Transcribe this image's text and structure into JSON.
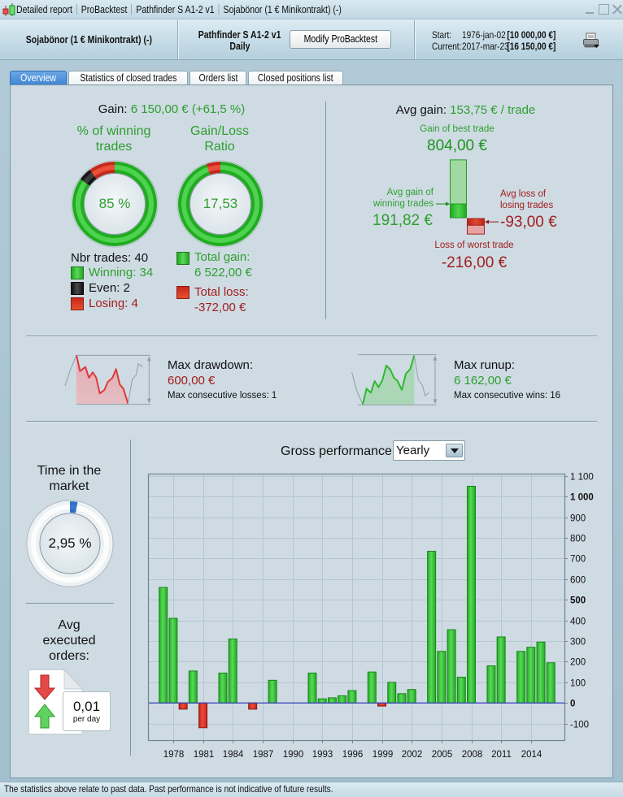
{
  "window": {
    "title_parts": [
      "Detailed report",
      "ProBacktest",
      "Pathfinder S A1-2 v1",
      "Sojabönor (1 € Minikontrakt) (-)"
    ],
    "icons": {
      "app": "candlestick-icon",
      "minimize": "minimize-icon",
      "maximize": "maximize-icon",
      "close": "close-icon"
    }
  },
  "header": {
    "instrument": "Sojabönor (1 € Minikontrakt) (-)",
    "strategy": "Pathfinder S A1-2 v1",
    "timeframe": "Daily",
    "modify_button": "Modify ProBacktest",
    "start_label": "Start:",
    "start_date": "1976-jan-02",
    "start_capital": "[10 000,00 €]",
    "current_label": "Current:",
    "current_date": "2017-mar-23",
    "current_capital": "[16 150,00 €]",
    "print_icon": "printer-icon"
  },
  "tabs": [
    {
      "label": "Overview",
      "active": true
    },
    {
      "label": "Statistics of closed trades",
      "active": false
    },
    {
      "label": "Orders list",
      "active": false
    },
    {
      "label": "Closed positions list",
      "active": false
    }
  ],
  "overview": {
    "gain_label": "Gain:",
    "gain_value": "6 150,00 € (+61,5 %)",
    "winning_title": "% of winning trades",
    "winning_pct_label": "85 %",
    "ratio_title": "Gain/Loss Ratio",
    "ratio_label": "17,53",
    "trades": {
      "total_label": "Nbr trades: 40",
      "winning": {
        "label": "Winning: 34",
        "count": 34
      },
      "even": {
        "label": "Even: 2",
        "count": 2
      },
      "losing": {
        "label": "Losing: 4",
        "count": 4
      }
    },
    "totals": {
      "gain_label": "Total gain:",
      "gain_value": "6 522,00 €",
      "gain_amount": 6522,
      "loss_label": "Total loss:",
      "loss_value": "-372,00 €",
      "loss_amount": 372
    },
    "avg_gain_label": "Avg gain:",
    "avg_gain_value": "153,75 € / trade",
    "best_trade_label": "Gain of best trade",
    "best_trade_value": "804,00 €",
    "avg_win_label": "Avg gain of winning trades",
    "avg_win_value": "191,82 €",
    "avg_loss_label": "Avg loss of losing trades",
    "avg_loss_value": "-93,00 €",
    "worst_trade_label": "Loss of worst trade",
    "worst_trade_value": "-216,00 €",
    "trade_amounts": {
      "best": 804,
      "avg_win": 191.82,
      "avg_loss": -93,
      "worst": -216
    },
    "drawdown": {
      "title": "Max drawdown:",
      "value": "600,00 €",
      "sub": "Max consecutive losses: 1"
    },
    "runup": {
      "title": "Max runup:",
      "value": "6 162,00 €",
      "sub": "Max consecutive wins: 16"
    },
    "time_in_market": {
      "title": "Time in the market",
      "label": "2,95 %",
      "percent": 2.95
    },
    "executed_orders": {
      "title": "Avg executed orders:",
      "value": "0,01",
      "unit": "per day"
    }
  },
  "chart_header": {
    "title": "Gross performance",
    "period": "Yearly"
  },
  "chart_data": {
    "type": "bar",
    "title": "Gross performance",
    "period": "Yearly",
    "xlabel": "",
    "ylabel": "",
    "x": [
      1977,
      1978,
      1979,
      1980,
      1981,
      1982,
      1983,
      1984,
      1985,
      1986,
      1987,
      1988,
      1989,
      1990,
      1991,
      1992,
      1993,
      1994,
      1995,
      1996,
      1997,
      1998,
      1999,
      2000,
      2001,
      2002,
      2003,
      2004,
      2005,
      2006,
      2007,
      2008,
      2009,
      2010,
      2011,
      2012,
      2013,
      2014,
      2015,
      2016
    ],
    "values": [
      560,
      410,
      -30,
      155,
      -120,
      0,
      145,
      310,
      0,
      -30,
      0,
      110,
      0,
      0,
      0,
      145,
      20,
      25,
      35,
      60,
      0,
      150,
      -15,
      100,
      45,
      65,
      0,
      735,
      250,
      355,
      125,
      1050,
      0,
      180,
      320,
      0,
      250,
      270,
      295,
      195
    ],
    "xticks": [
      1978,
      1981,
      1984,
      1987,
      1990,
      1993,
      1996,
      1999,
      2002,
      2005,
      2008,
      2011,
      2014
    ],
    "yticks": [
      -100,
      0,
      100,
      200,
      300,
      400,
      500,
      600,
      700,
      800,
      900,
      1000,
      1100
    ],
    "ytick_labels": [
      "-100",
      "0",
      "100",
      "200",
      "300",
      "400",
      "500",
      "600",
      "700",
      "800",
      "900",
      "1 000",
      "1 100"
    ],
    "ytick_bold": [
      0,
      500,
      1000
    ],
    "xlim": [
      1975.47,
      2017.37
    ],
    "ylim": [
      -180,
      1111
    ],
    "grid": true,
    "legend": "none",
    "positive_color": "#22b422",
    "negative_color": "#d0291d",
    "zero_line_color": "#3342b8"
  },
  "footer": {
    "disclaimer": "The statistics above relate to past data. Past performance is not indicative of future results."
  },
  "colors": {
    "win": "#22b422",
    "even": "#111111",
    "loss": "#d0291d",
    "time_in_market": "#3a78d0",
    "active_tab": "#4a8edb"
  }
}
